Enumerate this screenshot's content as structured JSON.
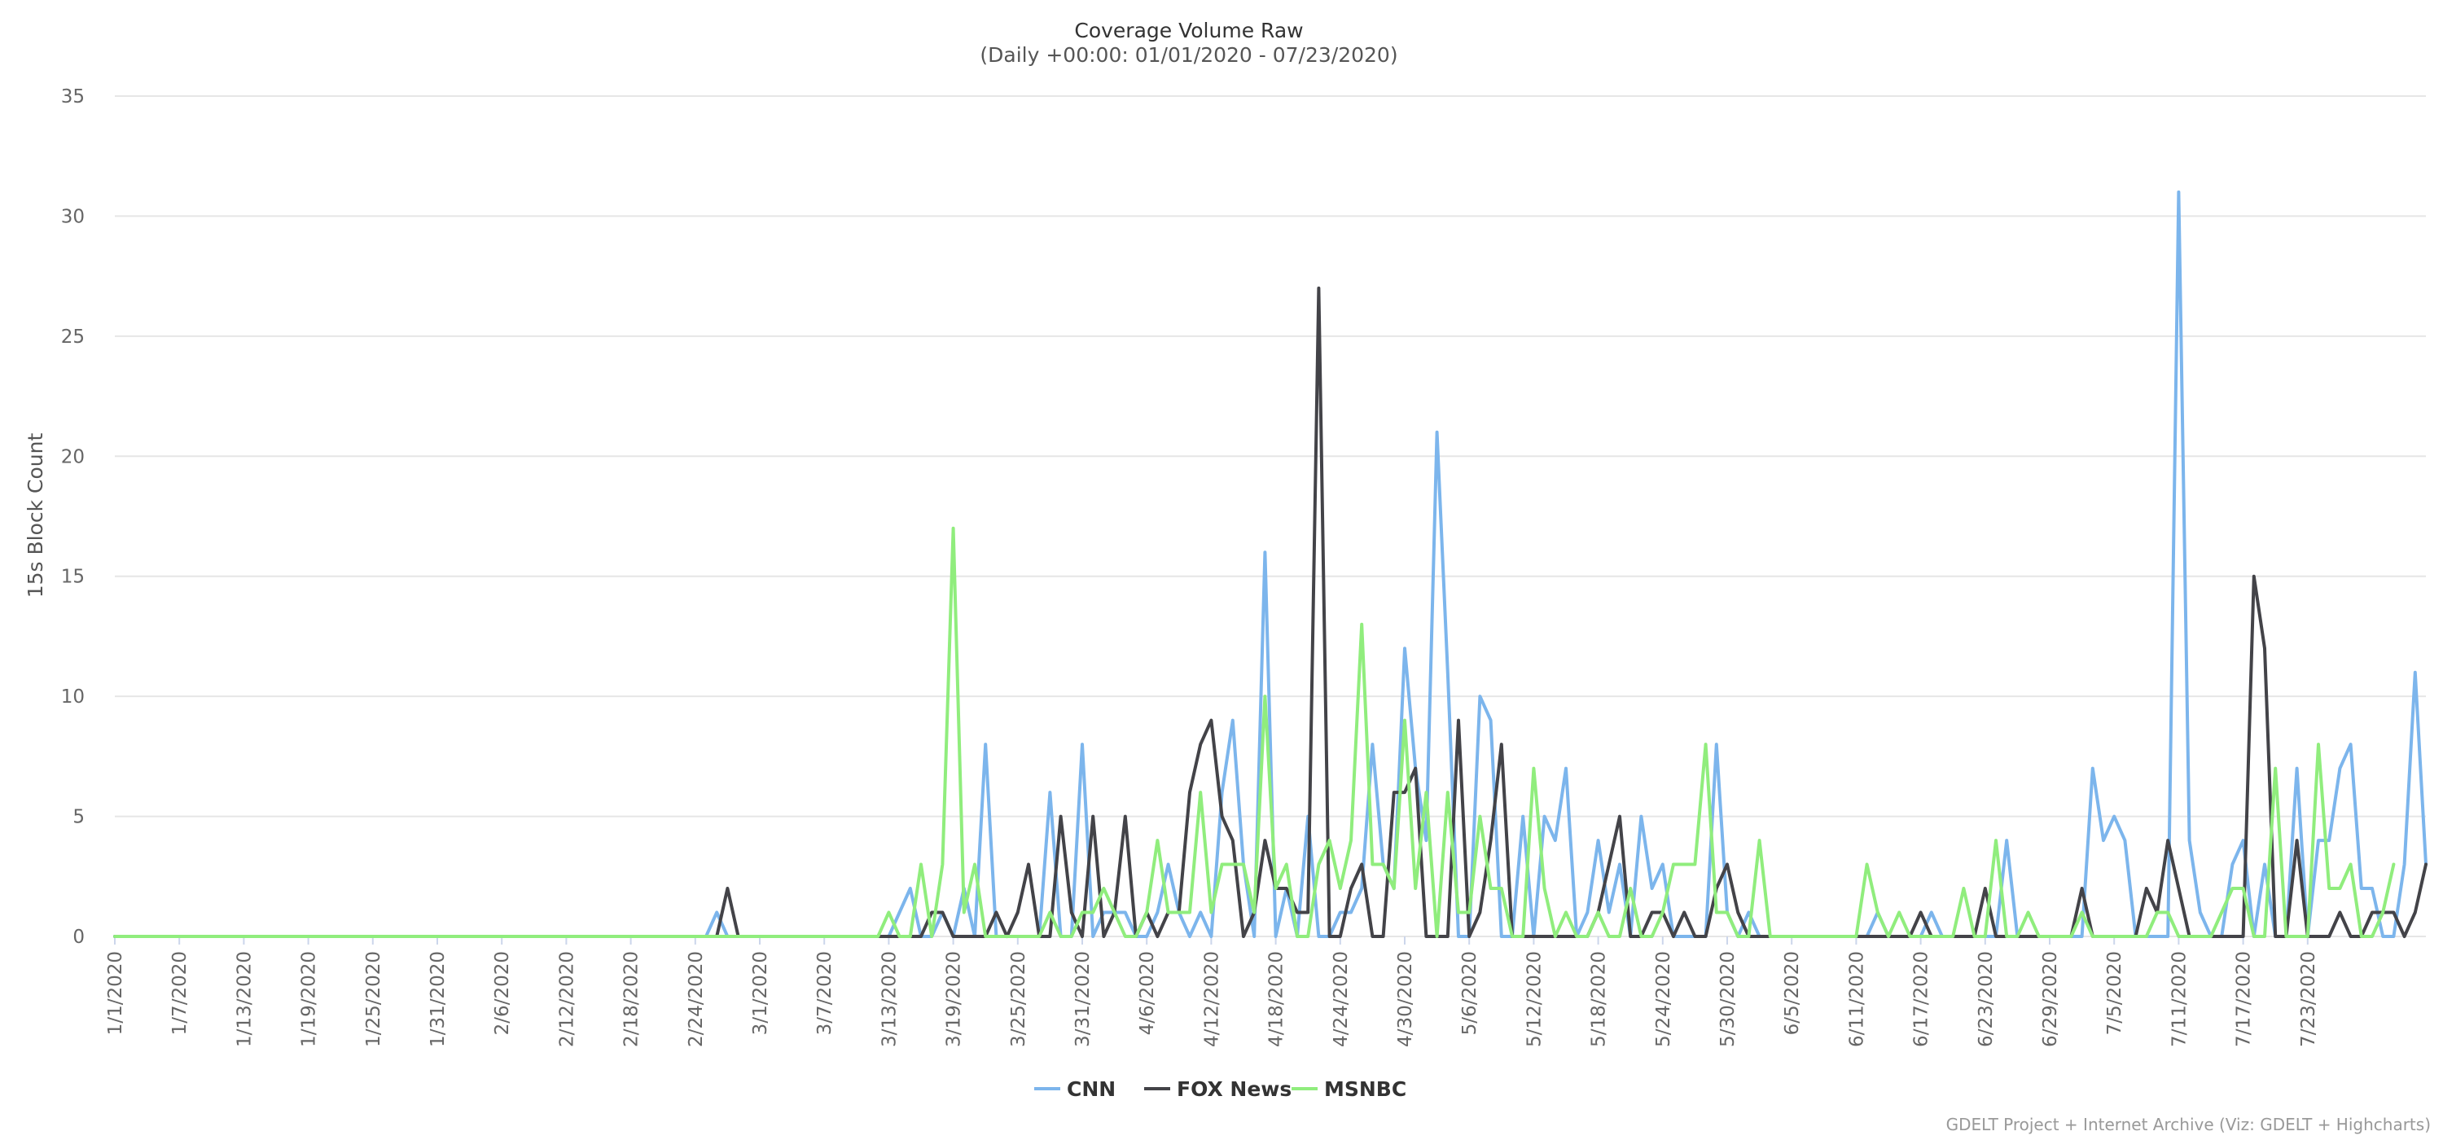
{
  "chart_data": {
    "type": "line",
    "title": "Coverage Volume Raw",
    "subtitle": "(Daily +00:00: 01/01/2020 - 07/23/2020)",
    "ylabel": "15s Block Count",
    "xlabel": "",
    "ylim": [
      0,
      35
    ],
    "yticks": [
      0,
      5,
      10,
      15,
      20,
      25,
      30,
      35
    ],
    "grid": true,
    "legend_position": "bottom-center",
    "credits": "GDELT Project + Internet Archive (Viz: GDELT + Highcharts)",
    "start_date": "2020-01-01",
    "x_tick_labels": [
      "1/1/2020",
      "1/7/2020",
      "1/13/2020",
      "1/19/2020",
      "1/25/2020",
      "1/31/2020",
      "2/6/2020",
      "2/12/2020",
      "2/18/2020",
      "2/24/2020",
      "3/1/2020",
      "3/7/2020",
      "3/13/2020",
      "3/19/2020",
      "3/25/2020",
      "3/31/2020",
      "4/6/2020",
      "4/12/2020",
      "4/18/2020",
      "4/24/2020",
      "4/30/2020",
      "5/6/2020",
      "5/12/2020",
      "5/18/2020",
      "5/24/2020",
      "5/30/2020",
      "6/5/2020",
      "6/11/2020",
      "6/17/2020",
      "6/23/2020",
      "6/29/2020",
      "7/5/2020",
      "7/11/2020",
      "7/17/2020",
      "7/23/2020"
    ],
    "series": [
      {
        "name": "CNN",
        "color": "#7cb5ec",
        "values": [
          0,
          0,
          0,
          0,
          0,
          0,
          0,
          0,
          0,
          0,
          0,
          0,
          0,
          0,
          0,
          0,
          0,
          0,
          0,
          0,
          0,
          0,
          0,
          0,
          0,
          0,
          0,
          0,
          0,
          0,
          0,
          0,
          0,
          0,
          0,
          0,
          0,
          0,
          0,
          0,
          0,
          0,
          0,
          0,
          0,
          0,
          0,
          0,
          0,
          0,
          0,
          0,
          0,
          0,
          0,
          0,
          1,
          0,
          0,
          0,
          0,
          0,
          0,
          0,
          0,
          0,
          0,
          0,
          0,
          0,
          0,
          0,
          0,
          1,
          2,
          0,
          0,
          1,
          0,
          2,
          0,
          8,
          0,
          0,
          0,
          0,
          0,
          6,
          0,
          0,
          8,
          0,
          1,
          1,
          1,
          0,
          0,
          1,
          3,
          1,
          0,
          1,
          0,
          6,
          9,
          3,
          0,
          16,
          0,
          2,
          0,
          5,
          0,
          0,
          1,
          1,
          2,
          8,
          3,
          2,
          12,
          7,
          4,
          21,
          11,
          0,
          0,
          10,
          9,
          0,
          0,
          5,
          0,
          5,
          4,
          7,
          0,
          1,
          4,
          1,
          3,
          0,
          5,
          2,
          3,
          0,
          0,
          0,
          0,
          8,
          1,
          0,
          1,
          0,
          0,
          0,
          0,
          0,
          0,
          0,
          0,
          0,
          0,
          0,
          1,
          0,
          0,
          0,
          0,
          1,
          0,
          0,
          0,
          0,
          0,
          0,
          4,
          0,
          0,
          0,
          0,
          0,
          0,
          0,
          7,
          4,
          5,
          4,
          0,
          0,
          0,
          0,
          31,
          4,
          1,
          0,
          0,
          3,
          4,
          0,
          3,
          0,
          0,
          7,
          0,
          4,
          4,
          7,
          8,
          2,
          2,
          0,
          0,
          3,
          11,
          3
        ]
      },
      {
        "name": "FOX News",
        "color": "#434348",
        "values": [
          0,
          0,
          0,
          0,
          0,
          0,
          0,
          0,
          0,
          0,
          0,
          0,
          0,
          0,
          0,
          0,
          0,
          0,
          0,
          0,
          0,
          0,
          0,
          0,
          0,
          0,
          0,
          0,
          0,
          0,
          0,
          0,
          0,
          0,
          0,
          0,
          0,
          0,
          0,
          0,
          0,
          0,
          0,
          0,
          0,
          0,
          0,
          0,
          0,
          0,
          0,
          0,
          0,
          0,
          0,
          0,
          0,
          2,
          0,
          0,
          0,
          0,
          0,
          0,
          0,
          0,
          0,
          0,
          0,
          0,
          0,
          0,
          0,
          0,
          0,
          0,
          1,
          1,
          0,
          0,
          0,
          0,
          1,
          0,
          1,
          3,
          0,
          0,
          5,
          1,
          0,
          5,
          0,
          1,
          5,
          0,
          1,
          0,
          1,
          1,
          6,
          8,
          9,
          5,
          4,
          0,
          1,
          4,
          2,
          2,
          1,
          1,
          27,
          0,
          0,
          2,
          3,
          0,
          0,
          6,
          6,
          7,
          0,
          0,
          0,
          9,
          0,
          1,
          4,
          8,
          0,
          0,
          0,
          0,
          0,
          0,
          0,
          0,
          1,
          3,
          5,
          0,
          0,
          1,
          1,
          0,
          1,
          0,
          0,
          2,
          3,
          1,
          0,
          0,
          0,
          0,
          0,
          0,
          0,
          0,
          0,
          0,
          0,
          0,
          0,
          0,
          0,
          0,
          1,
          0,
          0,
          0,
          0,
          0,
          2,
          0,
          0,
          0,
          0,
          0,
          0,
          0,
          0,
          2,
          0,
          0,
          0,
          0,
          0,
          2,
          1,
          4,
          2,
          0,
          0,
          0,
          0,
          0,
          0,
          15,
          12,
          0,
          0,
          4,
          0,
          0,
          0,
          1,
          0,
          0,
          1,
          1,
          1,
          0,
          1,
          3
        ]
      },
      {
        "name": "MSNBC",
        "color": "#90ed7d",
        "values": [
          0,
          0,
          0,
          0,
          0,
          0,
          0,
          0,
          0,
          0,
          0,
          0,
          0,
          0,
          0,
          0,
          0,
          0,
          0,
          0,
          0,
          0,
          0,
          0,
          0,
          0,
          0,
          0,
          0,
          0,
          0,
          0,
          0,
          0,
          0,
          0,
          0,
          0,
          0,
          0,
          0,
          0,
          0,
          0,
          0,
          0,
          0,
          0,
          0,
          0,
          0,
          0,
          0,
          0,
          0,
          0,
          0,
          0,
          0,
          0,
          0,
          0,
          0,
          0,
          0,
          0,
          0,
          0,
          0,
          0,
          0,
          0,
          1,
          0,
          0,
          3,
          0,
          3,
          17,
          1,
          3,
          0,
          0,
          0,
          0,
          0,
          0,
          1,
          0,
          0,
          1,
          1,
          2,
          1,
          0,
          0,
          1,
          4,
          1,
          1,
          1,
          6,
          1,
          3,
          3,
          3,
          1,
          10,
          2,
          3,
          0,
          0,
          3,
          4,
          2,
          4,
          13,
          3,
          3,
          2,
          9,
          2,
          6,
          0,
          6,
          1,
          1,
          5,
          2,
          2,
          0,
          0,
          7,
          2,
          0,
          1,
          0,
          0,
          1,
          0,
          0,
          2,
          0,
          0,
          1,
          3,
          3,
          3,
          8,
          1,
          1,
          0,
          0,
          4,
          0,
          0,
          0,
          0,
          0,
          0,
          0,
          0,
          0,
          3,
          1,
          0,
          1,
          0,
          0,
          0,
          0,
          0,
          2,
          0,
          0,
          4,
          0,
          0,
          1,
          0,
          0,
          0,
          0,
          1,
          0,
          0,
          0,
          0,
          0,
          0,
          1,
          1,
          0,
          0,
          0,
          0,
          1,
          2,
          2,
          0,
          0,
          7,
          0,
          0,
          0,
          8,
          2,
          2,
          3,
          0,
          0,
          1,
          3
        ]
      }
    ]
  }
}
